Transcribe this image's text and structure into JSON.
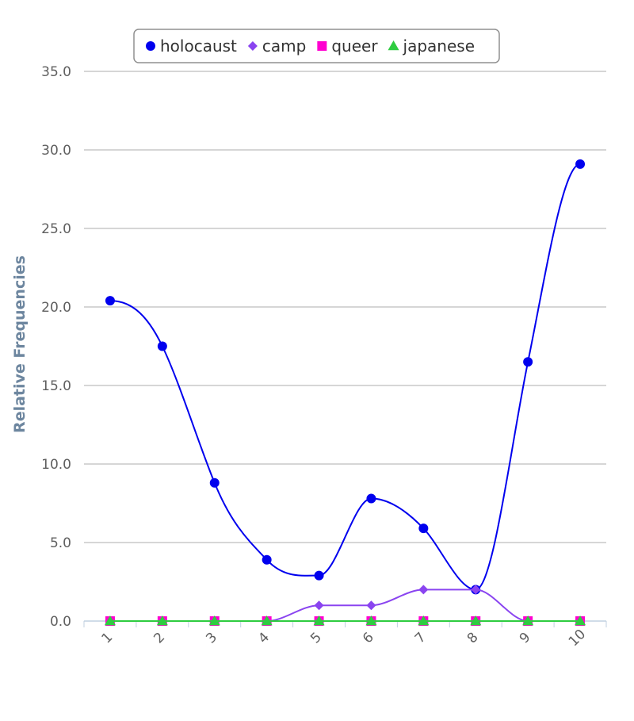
{
  "chart_data": {
    "type": "line",
    "title": "",
    "xlabel": "",
    "ylabel": "Relative Frequencies",
    "categories": [
      "1",
      "2",
      "3",
      "4",
      "5",
      "6",
      "7",
      "8",
      "9",
      "10"
    ],
    "ylim": [
      0,
      35
    ],
    "ytick_labels": [
      "0.0",
      "5.0",
      "10.0",
      "15.0",
      "20.0",
      "25.0",
      "30.0",
      "35.0"
    ],
    "ytick_values": [
      0,
      5,
      10,
      15,
      20,
      25,
      30,
      35
    ],
    "grid": "horizontal",
    "legend_position": "top-center",
    "smooth": true,
    "series": [
      {
        "name": "holocaust",
        "values": [
          20.4,
          17.5,
          8.8,
          3.9,
          2.9,
          7.8,
          5.9,
          2.0,
          16.5,
          29.1
        ],
        "color": "#0000ee",
        "marker": "circle"
      },
      {
        "name": "camp",
        "values": [
          0,
          0,
          0,
          0,
          1.0,
          1.0,
          2.0,
          2.0,
          0,
          0
        ],
        "color": "#8a44f0",
        "marker": "diamond"
      },
      {
        "name": "queer",
        "values": [
          0,
          0,
          0,
          0,
          0,
          0,
          0,
          0,
          0,
          0
        ],
        "color": "#ff00d0",
        "marker": "square"
      },
      {
        "name": "japanese",
        "values": [
          0,
          0,
          0,
          0,
          0,
          0,
          0,
          0,
          0,
          0
        ],
        "color": "#2ecc40",
        "marker": "triangle"
      }
    ]
  }
}
